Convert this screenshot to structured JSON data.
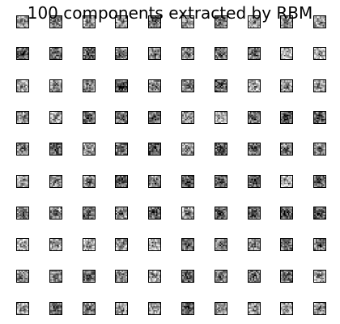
{
  "title": "100 components extracted by RBM",
  "grid": {
    "rows": 10,
    "cols": 10,
    "count": 100,
    "palette": "gray",
    "tile_border_color": "#000000",
    "background_color": "#ffffff"
  }
}
